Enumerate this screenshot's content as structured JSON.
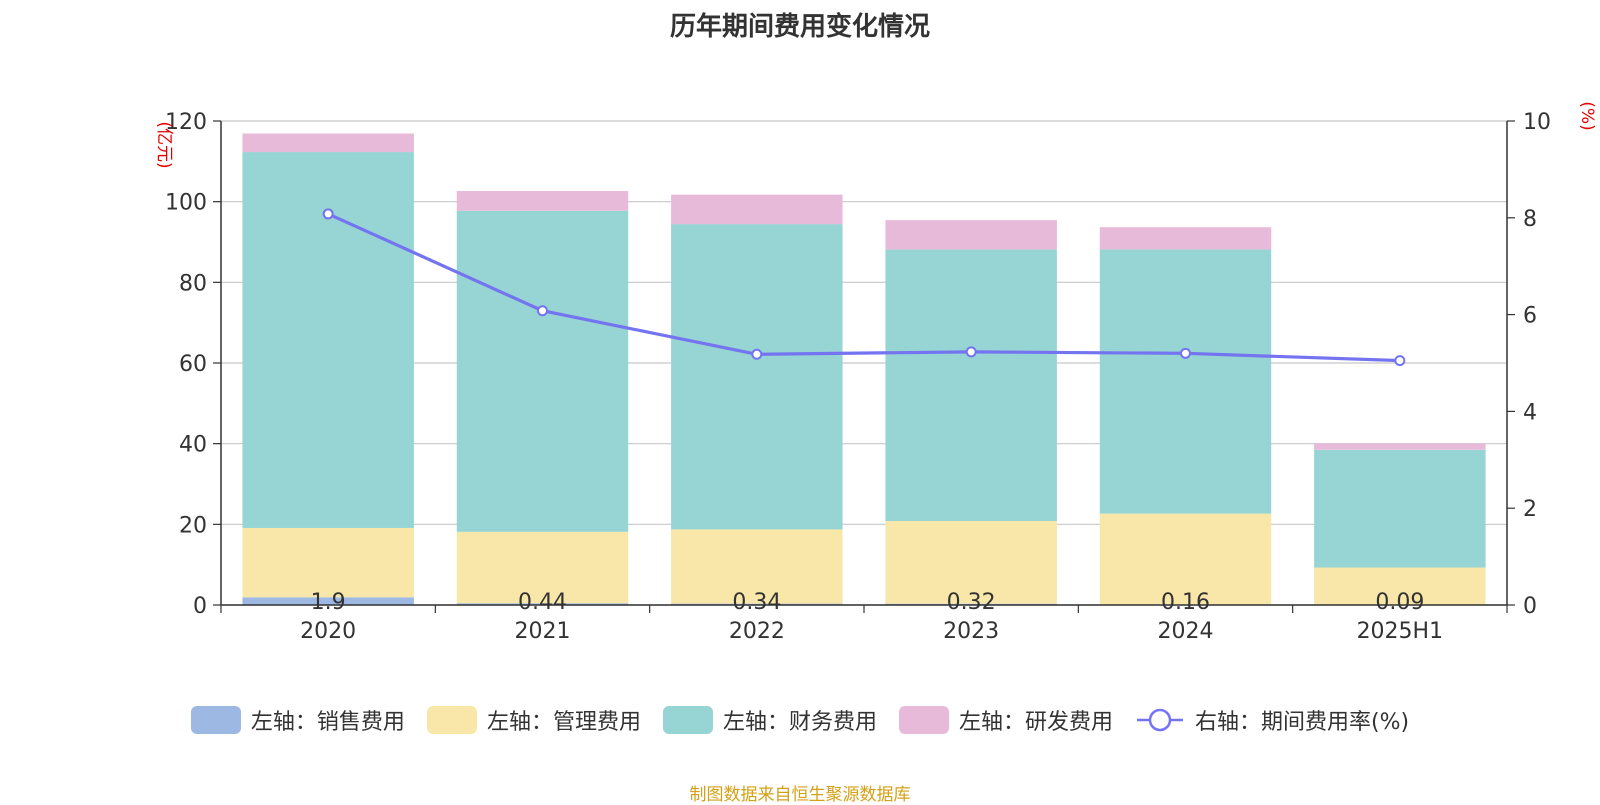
{
  "title": "历年期间费用变化情况",
  "source": "制图数据来自恒生聚源数据库",
  "chart_data": {
    "type": "bar",
    "stacked": true,
    "categories": [
      "2020",
      "2021",
      "2022",
      "2023",
      "2024",
      "2025H1"
    ],
    "y_left": {
      "unit": "(亿元)",
      "min": 0,
      "max": 120,
      "ticks": [
        0,
        20,
        40,
        60,
        80,
        100,
        120
      ]
    },
    "y_right": {
      "unit": "(%)",
      "min": 0,
      "max": 10,
      "ticks": [
        0,
        2,
        4,
        6,
        8,
        10
      ]
    },
    "grid": true,
    "legend_position": "bottom",
    "series": [
      {
        "name": "左轴：销售费用",
        "axis": "left",
        "color": "#9db8e3",
        "values": [
          1.9,
          0.44,
          0.34,
          0.32,
          0.16,
          0.09
        ],
        "labels": [
          "1.9",
          "0.44",
          "0.34",
          "0.32",
          "0.16",
          "0.09"
        ]
      },
      {
        "name": "左轴：管理费用",
        "axis": "left",
        "color": "#f8e7a8",
        "values": [
          17.2,
          17.7,
          18.4,
          20.5,
          22.5,
          9.2
        ]
      },
      {
        "name": "左轴：财务费用",
        "axis": "left",
        "color": "#97d4d4",
        "values": [
          93.2,
          79.6,
          75.7,
          67.3,
          65.5,
          29.2
        ]
      },
      {
        "name": "左轴：研发费用",
        "axis": "left",
        "color": "#e8bad9",
        "values": [
          4.6,
          4.9,
          7.3,
          7.3,
          5.5,
          1.6
        ]
      },
      {
        "name": "右轴：期间费用率(%)",
        "axis": "right",
        "type": "line",
        "color": "#7474f0",
        "values": [
          8.08,
          6.08,
          5.18,
          5.23,
          5.2,
          5.05
        ]
      }
    ]
  }
}
